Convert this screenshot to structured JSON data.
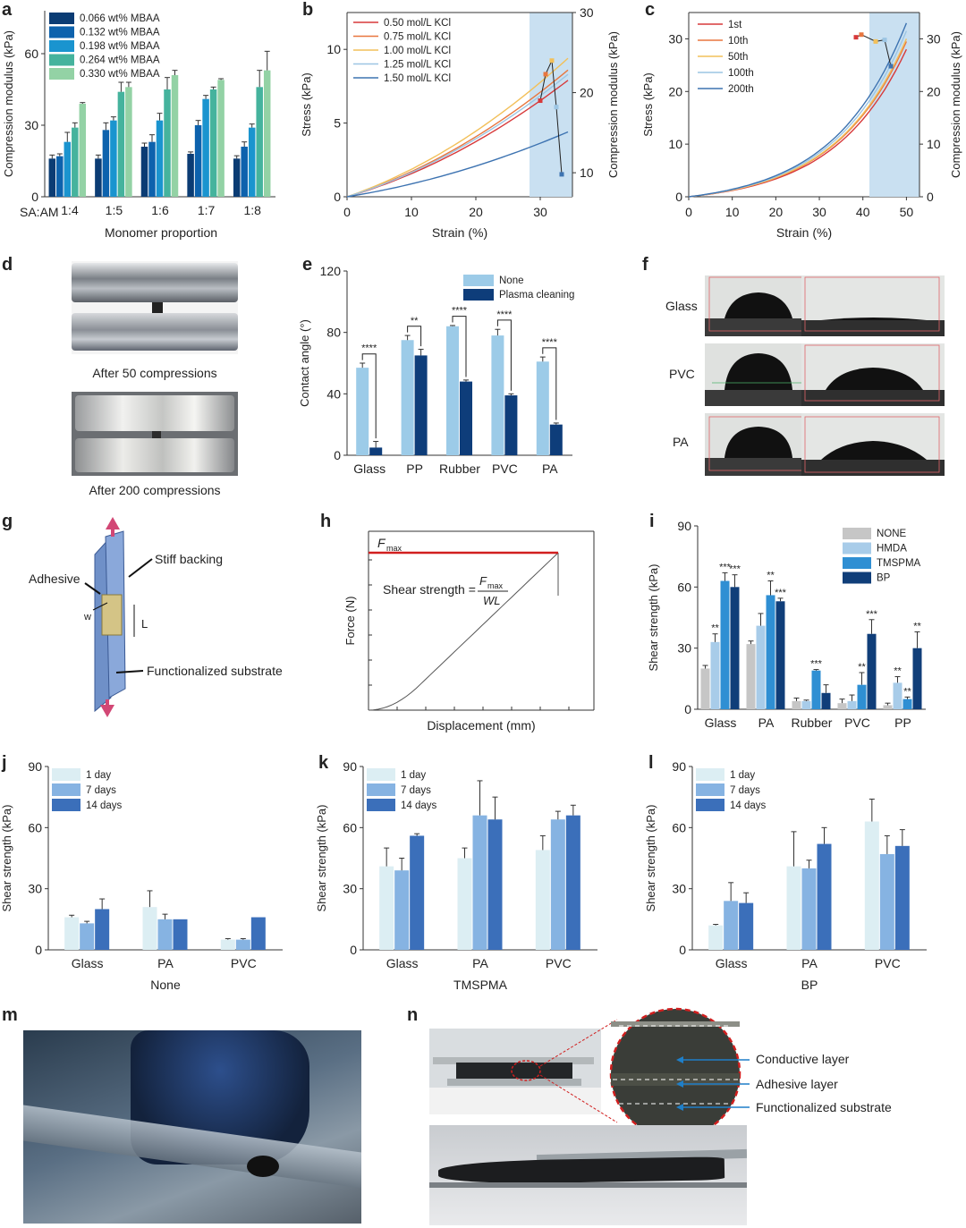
{
  "panel_labels": [
    "a",
    "b",
    "c",
    "d",
    "e",
    "f",
    "g",
    "h",
    "i",
    "j",
    "k",
    "l",
    "m",
    "n"
  ],
  "colors": {
    "mbaa": [
      "#0b3c74",
      "#0d62ad",
      "#1a94cf",
      "#45b39d",
      "#93d2a5"
    ],
    "kcl": [
      "#d7393a",
      "#e8763f",
      "#f2c05a",
      "#9cc5e3",
      "#3d73b1"
    ],
    "cycles": [
      "#d7393a",
      "#e8763f",
      "#f2c05a",
      "#9cc5e3",
      "#3d73b1"
    ],
    "shade": "#c9e0f1",
    "none": "#9ccbe8",
    "plasma": "#0e3d7a",
    "treat": [
      "#c6c6c6",
      "#a8cce9",
      "#2f8fd3",
      "#103e79"
    ],
    "days": [
      "#dceef3",
      "#86b3e2",
      "#3b6fba"
    ],
    "red": "#d11f1f"
  },
  "chart_data": [
    {
      "id": "a",
      "type": "bar",
      "categories": [
        "1:4",
        "1:5",
        "1:6",
        "1:7",
        "1:8"
      ],
      "cat_prefix": "SA:AM",
      "series": [
        {
          "name": "0.066 wt% MBAA",
          "values": [
            16,
            16,
            21,
            18,
            16
          ],
          "err": [
            1.5,
            1.5,
            1.5,
            0.8,
            1.2
          ]
        },
        {
          "name": "0.132 wt% MBAA",
          "values": [
            17,
            28,
            23,
            30,
            21
          ],
          "err": [
            1,
            3,
            3,
            2,
            2
          ]
        },
        {
          "name": "0.198 wt% MBAA",
          "values": [
            23,
            32,
            32,
            41,
            29
          ],
          "err": [
            4,
            1.5,
            3,
            1.5,
            1.5
          ]
        },
        {
          "name": "0.264 wt% MBAA",
          "values": [
            29,
            44,
            45,
            45,
            46
          ],
          "err": [
            2,
            4,
            5,
            1,
            7
          ]
        },
        {
          "name": "0.330 wt% MBAA",
          "values": [
            39,
            46,
            51,
            49,
            53
          ],
          "err": [
            0.5,
            2,
            2,
            0.5,
            8
          ]
        }
      ],
      "xlabel": "Monomer proportion",
      "ylabel": "Compression modulus (kPa)",
      "ylim": [
        0,
        78
      ],
      "yticks": [
        0,
        30,
        60
      ]
    },
    {
      "id": "b",
      "type": "line",
      "series": [
        {
          "name": "0.50 mol/L KCl",
          "end_stress": 7.9,
          "modulus": 19.0
        },
        {
          "name": "0.75 mol/L KCl",
          "end_stress": 8.6,
          "modulus": 22.3
        },
        {
          "name": "1.00 mol/L KCl",
          "end_stress": 9.4,
          "modulus": 24.0
        },
        {
          "name": "1.25 mol/L KCl",
          "end_stress": 8.3,
          "modulus": 18.2
        },
        {
          "name": "1.50 mol/L KCl",
          "end_stress": 4.4,
          "modulus": 9.8
        }
      ],
      "xlabel": "Strain (%)",
      "ylabel": "Stress (kPa)",
      "y2label": "Compression modulus (kPa)",
      "xlim": [
        0,
        35
      ],
      "ylim": [
        0,
        12.5
      ],
      "y2lim": [
        7,
        30
      ],
      "xticks": [
        0,
        10,
        20,
        30
      ],
      "yticks": [
        0,
        5,
        10
      ],
      "y2ticks": [
        10,
        20,
        30
      ]
    },
    {
      "id": "c",
      "type": "line",
      "series": [
        {
          "name": "1st",
          "end_stress": 28,
          "modulus": 30.3
        },
        {
          "name": "10th",
          "end_stress": 29.5,
          "modulus": 30.8
        },
        {
          "name": "50th",
          "end_stress": 30,
          "modulus": 29.5
        },
        {
          "name": "100th",
          "end_stress": 31.5,
          "modulus": 29.8
        },
        {
          "name": "200th",
          "end_stress": 33,
          "modulus": 24.8
        }
      ],
      "xlabel": "Strain (%)",
      "ylabel": "Stress (kPa)",
      "y2label": "Compression modulus (kPa)",
      "xlim": [
        0,
        53
      ],
      "ylim": [
        0,
        35
      ],
      "y2lim": [
        0,
        35
      ],
      "xticks": [
        0,
        10,
        20,
        30,
        40,
        50
      ],
      "yticks": [
        0,
        10,
        20,
        30
      ],
      "y2ticks": [
        0,
        10,
        20,
        30
      ]
    },
    {
      "id": "e",
      "type": "bar",
      "categories": [
        "Glass",
        "PP",
        "Rubber",
        "PVC",
        "PA"
      ],
      "series": [
        {
          "name": "None",
          "values": [
            57,
            75,
            84,
            78,
            61
          ],
          "err": [
            3,
            3,
            0.5,
            4,
            3
          ]
        },
        {
          "name": "Plasma cleaning",
          "values": [
            5,
            65,
            48,
            39,
            20
          ],
          "err": [
            4,
            4,
            1,
            1,
            1
          ]
        }
      ],
      "sig": [
        "****",
        "**",
        "****",
        "****",
        "****"
      ],
      "xlabel": "",
      "ylabel": "Contact angle (°)",
      "ylim": [
        0,
        120
      ],
      "yticks": [
        0,
        40,
        80,
        120
      ]
    },
    {
      "id": "h",
      "type": "line",
      "title_label": "F",
      "title_sub": "max",
      "equation": "Shear strength =",
      "eq_num": "F",
      "eq_num_sub": "max",
      "eq_den": "WL",
      "xlabel": "Displacement (mm)",
      "ylabel": "Force (N)"
    },
    {
      "id": "i",
      "type": "bar",
      "categories": [
        "Glass",
        "PA",
        "Rubber",
        "PVC",
        "PP"
      ],
      "series": [
        {
          "name": "NONE",
          "values": [
            20,
            32,
            4,
            3,
            2
          ],
          "err": [
            1.5,
            1.5,
            1.5,
            2,
            1
          ]
        },
        {
          "name": "HMDA",
          "values": [
            33,
            41,
            4,
            4,
            13
          ],
          "err": [
            4,
            6,
            0.5,
            3,
            3
          ]
        },
        {
          "name": "TMSPMA",
          "values": [
            63,
            56,
            19,
            12,
            5
          ],
          "err": [
            4,
            7,
            0.5,
            6,
            1
          ]
        },
        {
          "name": "BP",
          "values": [
            60,
            53,
            8,
            37,
            30
          ],
          "err": [
            6,
            1.5,
            4,
            7,
            8
          ]
        }
      ],
      "sig": [
        [
          "",
          "**",
          "***",
          "***"
        ],
        [
          "",
          "",
          "**",
          "***"
        ],
        [
          "",
          "",
          "***",
          ""
        ],
        [
          "",
          "",
          "**",
          "***"
        ],
        [
          "",
          "**",
          "**",
          "**"
        ]
      ],
      "xlabel": "",
      "ylabel": "Shear strength (kPa)",
      "ylim": [
        0,
        90
      ],
      "yticks": [
        0,
        30,
        60,
        90
      ]
    },
    {
      "id": "j",
      "type": "bar",
      "categories": [
        "Glass",
        "PA",
        "PVC"
      ],
      "series": [
        {
          "name": "1 day",
          "values": [
            16,
            21,
            5
          ],
          "err": [
            1,
            8,
            0.5
          ]
        },
        {
          "name": "7 days",
          "values": [
            13,
            15,
            5
          ],
          "err": [
            1,
            2.5,
            0.5
          ]
        },
        {
          "name": "14 days",
          "values": [
            20,
            15,
            16
          ],
          "err": [
            5,
            0,
            0
          ]
        }
      ],
      "xlabel": "None",
      "ylabel": "Shear strength (kPa)",
      "ylim": [
        0,
        90
      ],
      "yticks": [
        0,
        30,
        60,
        90
      ]
    },
    {
      "id": "k",
      "type": "bar",
      "categories": [
        "Glass",
        "PA",
        "PVC"
      ],
      "series": [
        {
          "name": "1 day",
          "values": [
            41,
            45,
            49
          ],
          "err": [
            9,
            5,
            7
          ]
        },
        {
          "name": "7 days",
          "values": [
            39,
            66,
            64
          ],
          "err": [
            6,
            17,
            4
          ]
        },
        {
          "name": "14 days",
          "values": [
            56,
            64,
            66
          ],
          "err": [
            1,
            11,
            5
          ]
        }
      ],
      "xlabel": "TMSPMA",
      "ylabel": "Shear strength (kPa)",
      "ylim": [
        0,
        90
      ],
      "yticks": [
        0,
        30,
        60,
        90
      ]
    },
    {
      "id": "l",
      "type": "bar",
      "categories": [
        "Glass",
        "PA",
        "PVC"
      ],
      "series": [
        {
          "name": "1 day",
          "values": [
            12,
            41,
            63
          ],
          "err": [
            0.5,
            17,
            11
          ]
        },
        {
          "name": "7 days",
          "values": [
            24,
            40,
            47
          ],
          "err": [
            9,
            4,
            9
          ]
        },
        {
          "name": "14 days",
          "values": [
            23,
            52,
            51
          ],
          "err": [
            5,
            8,
            8
          ]
        }
      ],
      "xlabel": "BP",
      "ylabel": "Shear strength (kPa)",
      "ylim": [
        0,
        90
      ],
      "yticks": [
        0,
        30,
        60,
        90
      ]
    }
  ],
  "panel_d": {
    "caption_top": "After 50 compressions",
    "caption_bottom": "After 200 compressions"
  },
  "panel_f": {
    "rows": [
      "Glass",
      "PVC",
      "PA"
    ]
  },
  "panel_g": {
    "stiff": "Stiff backing",
    "adhesive": "Adhesive",
    "substrate": "Functionalized substrate",
    "w": "w",
    "l": "L"
  },
  "panel_n": {
    "layer1": "Conductive layer",
    "layer2": "Adhesive layer",
    "layer3": "Functionalized substrate"
  }
}
